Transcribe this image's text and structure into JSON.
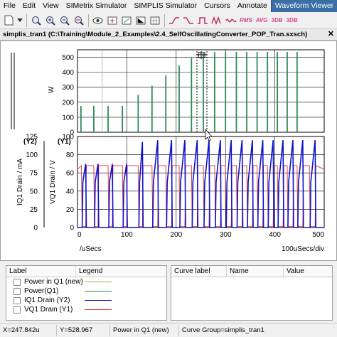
{
  "menu": {
    "items": [
      "File",
      "Edit",
      "View",
      "SIMetrix Simulator",
      "SIMPLIS Simulator",
      "Cursors",
      "Annotate",
      "Waveform Viewer"
    ],
    "selected": "Waveform Viewer"
  },
  "toolbar": {
    "icons": [
      "new-file-icon",
      "dropdown-arrow-icon",
      "zoom-full-icon",
      "zoom-in-icon",
      "zoom-out-icon",
      "zoom-width-icon",
      "eye-icon",
      "cursor-icon",
      "delete-curve-icon",
      "add-axis-icon",
      "grid-icon",
      "rise-time-icon",
      "fall-time-icon",
      "pulse-width-icon",
      "period-icon",
      "frequency-icon",
      "rms-icon",
      "avg-icon",
      "3db-high-icon",
      "3db-low-icon"
    ],
    "rms_label": "RMS",
    "avg_label": "AVG",
    "db3_high_label": "3DB",
    "db3_low_label": "3DB"
  },
  "window_title": "simplis_tran1 (C:\\Training\\Module_2_Examples\\2.4_SelfOscillatingConverter_POP_Tran.sxsch)",
  "top_graph": {
    "ylabel": "W",
    "yticks": [
      "0",
      "100",
      "200",
      "300",
      "400",
      "500"
    ]
  },
  "bottom_graph": {
    "y2_label": "(Y2)",
    "y1_label": "(Y1)",
    "y2_axis": "IQ1 Drain / mA",
    "y1_axis": "VQ1 Drain / V",
    "y2_ticks": [
      "0",
      "25",
      "50",
      "75",
      "100",
      "125"
    ],
    "y1_ticks": [
      "0",
      "20",
      "40",
      "60",
      "80",
      "100"
    ]
  },
  "x_axis": {
    "ticks": [
      "0",
      "100",
      "200",
      "300",
      "400",
      "500"
    ],
    "unit": "/uSecs",
    "per_div": "100uSecs/div"
  },
  "legend": {
    "header_label": "Label",
    "header_legend": "Legend",
    "rows": [
      {
        "label": "Power in Q1 (new)",
        "color": "#b8a848"
      },
      {
        "label": "Power(Q1)",
        "color": "#2e8b57"
      },
      {
        "label": "IQ1 Drain (Y2)",
        "color": "#1010cc"
      },
      {
        "label": "VQ1 Drain (Y1)",
        "color": "#e03030"
      }
    ]
  },
  "curve_table": {
    "headers": [
      "Curve label",
      "Name",
      "Value"
    ]
  },
  "status": {
    "x": "X=247.842u",
    "y": "Y=528.967",
    "curve": "Power in Q1 (new)",
    "group": "Curve Group=simplis_tran1"
  },
  "chart_data": [
    {
      "type": "line",
      "name": "power-graph",
      "ylabel": "W",
      "xlim": [
        0,
        500
      ],
      "ylim": [
        0,
        550
      ],
      "series": [
        {
          "name": "Power(Q1)",
          "color": "#2e8b57",
          "x": [
            7,
            33,
            62,
            91,
            123,
            151,
            179,
            206,
            231,
            255,
            278,
            300,
            322,
            343,
            364,
            385,
            405,
            425,
            445
          ],
          "values": [
            175,
            175,
            175,
            175,
            250,
            310,
            380,
            445,
            495,
            525,
            535,
            535,
            535,
            535,
            535,
            535,
            535,
            535,
            535
          ]
        }
      ]
    },
    {
      "type": "line",
      "name": "drain-graph",
      "xlim": [
        0,
        500
      ],
      "y1": {
        "name": "VQ1 Drain",
        "label": "VQ1 Drain / V",
        "ylim": [
          0,
          100
        ],
        "color": "#e03030"
      },
      "y2": {
        "name": "IQ1 Drain",
        "label": "IQ1 Drain / mA",
        "ylim": [
          0,
          125
        ],
        "color": "#1010cc"
      }
    }
  ]
}
